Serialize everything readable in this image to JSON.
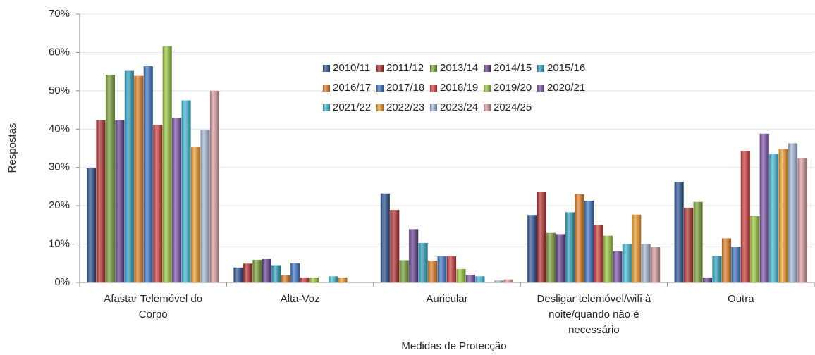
{
  "chart_data": {
    "type": "bar",
    "x_label": "Medidas de Protecção",
    "y_label": "Respostas",
    "categories": [
      "Afastar Telemóvel do\nCorpo",
      "Alta-Voz",
      "Auricular",
      "Desligar telemóvel/wifi à\nnoite/quando não é\nnecessário",
      "Outra"
    ],
    "ylim": [
      0,
      70
    ],
    "yticks": [
      {
        "value": 0,
        "label": "0%"
      },
      {
        "value": 10,
        "label": "10%"
      },
      {
        "value": 20,
        "label": "20%"
      },
      {
        "value": 30,
        "label": "30%"
      },
      {
        "value": 40,
        "label": "40%"
      },
      {
        "value": 50,
        "label": "50%"
      },
      {
        "value": 60,
        "label": "60%"
      },
      {
        "value": 70,
        "label": "70%"
      }
    ],
    "grid": true,
    "legend_position": "upper center",
    "series": [
      {
        "name": "2010/11",
        "color": "#24508f",
        "values": [
          29.8,
          3.9,
          23.2,
          17.6,
          26.2
        ]
      },
      {
        "name": "2011/12",
        "color": "#b02a2a",
        "values": [
          42.3,
          4.9,
          18.9,
          23.7,
          19.5
        ]
      },
      {
        "name": "2013/14",
        "color": "#78a334",
        "values": [
          54.2,
          5.9,
          5.8,
          12.9,
          21.0
        ]
      },
      {
        "name": "2014/15",
        "color": "#633c8c",
        "values": [
          42.3,
          6.2,
          13.9,
          12.6,
          1.3
        ]
      },
      {
        "name": "2015/16",
        "color": "#2b9fbf",
        "values": [
          55.2,
          4.5,
          10.3,
          18.3,
          6.9
        ]
      },
      {
        "name": "2016/17",
        "color": "#e07a1c",
        "values": [
          53.9,
          1.9,
          5.7,
          23.0,
          11.5
        ]
      },
      {
        "name": "2017/18",
        "color": "#3874c8",
        "values": [
          56.4,
          5.0,
          6.8,
          21.3,
          9.3
        ]
      },
      {
        "name": "2018/19",
        "color": "#d03636",
        "values": [
          41.1,
          1.3,
          6.8,
          15.0,
          34.3
        ]
      },
      {
        "name": "2019/20",
        "color": "#98c83a",
        "values": [
          61.6,
          1.3,
          3.5,
          12.2,
          17.3
        ]
      },
      {
        "name": "2020/21",
        "color": "#7a4ca6",
        "values": [
          42.9,
          0,
          2.0,
          8.1,
          38.8
        ]
      },
      {
        "name": "2021/22",
        "color": "#38bcd6",
        "values": [
          47.5,
          1.6,
          1.6,
          10.0,
          33.5
        ]
      },
      {
        "name": "2022/23",
        "color": "#f29a26",
        "values": [
          35.4,
          1.3,
          0,
          17.7,
          34.8
        ]
      },
      {
        "name": "2023/24",
        "color": "#a3b6d6",
        "values": [
          39.8,
          0,
          0.5,
          10.0,
          36.3
        ]
      },
      {
        "name": "2024/25",
        "color": "#d99898",
        "values": [
          50.0,
          0,
          0.8,
          9.2,
          32.4
        ]
      }
    ]
  }
}
